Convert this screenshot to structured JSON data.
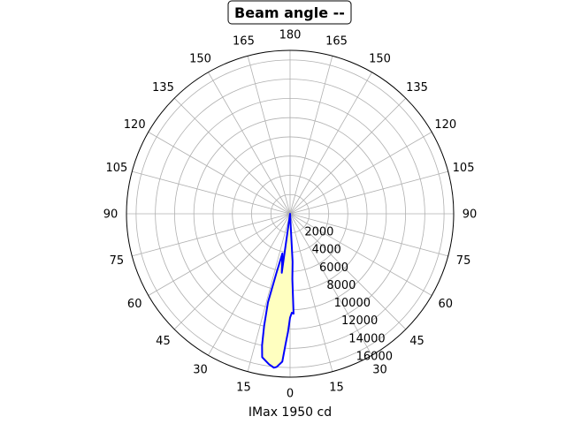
{
  "chart_data": {
    "type": "polar",
    "title": "Beam angle --",
    "xlabel": "IMax 1950 cd",
    "angle_tick_labels": [
      "180",
      "165",
      "150",
      "135",
      "120",
      "105",
      "90",
      "75",
      "60",
      "45",
      "30",
      "15",
      "0",
      "15",
      "30",
      "45",
      "60",
      "75",
      "90",
      "105",
      "120",
      "135",
      "150",
      "165"
    ],
    "angle_tick_values_deg": [
      180,
      165,
      150,
      135,
      120,
      105,
      90,
      75,
      60,
      45,
      30,
      15,
      0,
      15,
      30,
      45,
      60,
      75,
      90,
      105,
      120,
      135,
      150,
      165
    ],
    "radial_ticks": [
      2000,
      4000,
      6000,
      8000,
      10000,
      12000,
      14000,
      16000
    ],
    "radial_tick_labels": [
      "2000",
      "4000",
      "6000",
      "8000",
      "10000",
      "12000",
      "14000",
      "16000"
    ],
    "rlim": [
      0,
      17000
    ],
    "zero_direction": "bottom",
    "grid": true,
    "series": [
      {
        "color": "#0000ff",
        "fill": "#ffffc0",
        "points": [
          {
            "angle": 0,
            "r": 0
          },
          {
            "angle": -8,
            "r": 6200
          },
          {
            "angle": -11,
            "r": 4200
          },
          {
            "angle": -13,
            "r": 6400
          },
          {
            "angle": -14,
            "r": 9500
          },
          {
            "angle": -13,
            "r": 12000
          },
          {
            "angle": -12,
            "r": 14000
          },
          {
            "angle": -11,
            "r": 15200
          },
          {
            "angle": -8,
            "r": 15800
          },
          {
            "angle": -6,
            "r": 16100
          },
          {
            "angle": -5,
            "r": 16000
          },
          {
            "angle": -3,
            "r": 15400
          },
          {
            "angle": -2,
            "r": 13600
          },
          {
            "angle": -1,
            "r": 12300
          },
          {
            "angle": 0,
            "r": 10800
          },
          {
            "angle": 1,
            "r": 10300
          },
          {
            "angle": 2,
            "r": 10400
          },
          {
            "angle": 2,
            "r": 9400
          },
          {
            "angle": 2,
            "r": 8200
          },
          {
            "angle": 2,
            "r": 6800
          },
          {
            "angle": 3,
            "r": 5000
          },
          {
            "angle": 3,
            "r": 2500
          },
          {
            "angle": 0,
            "r": 0
          }
        ]
      }
    ]
  }
}
